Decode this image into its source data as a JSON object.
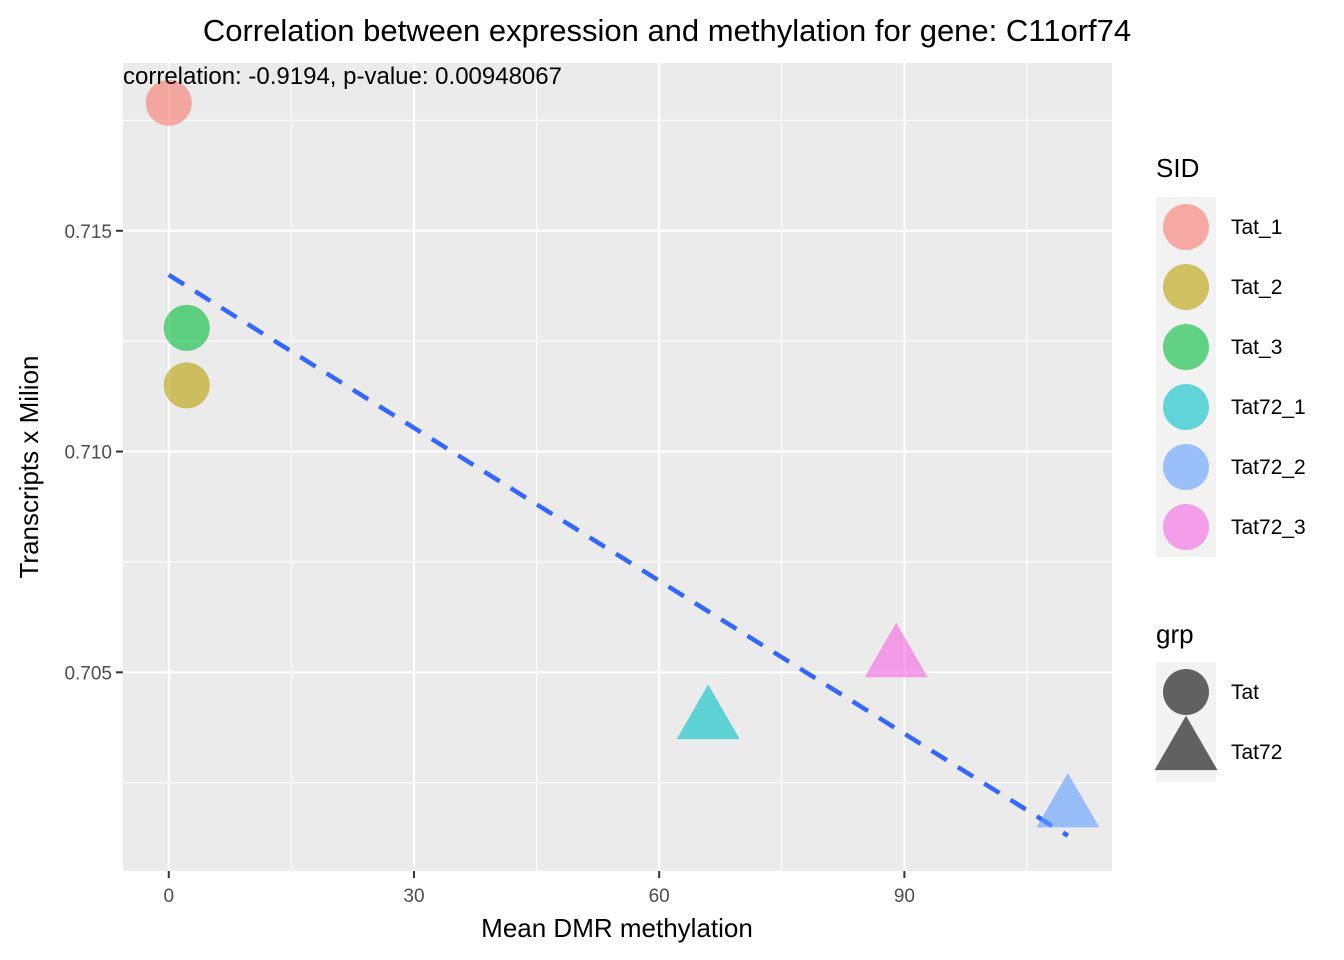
{
  "chart_data": {
    "type": "scatter",
    "title": "Correlation between expression and methylation for gene: C11orf74",
    "annotation": "correlation: -0.9194, p-value: 0.00948067",
    "xlabel": "Mean DMR methylation",
    "ylabel": "Transcripts x Milion",
    "xlim": [
      -5.6,
      115.4
    ],
    "ylim": [
      0.7005,
      0.7188
    ],
    "x_ticks": [
      "0",
      "30",
      "60",
      "90"
    ],
    "x_tick_values": [
      0,
      30,
      60,
      90
    ],
    "y_ticks": [
      "0.705",
      "0.710",
      "0.715"
    ],
    "y_tick_values": [
      0.705,
      0.71,
      0.715
    ],
    "grid": true,
    "points": [
      {
        "sid": "Tat_1",
        "grp": "Tat",
        "x": 0.0,
        "y": 0.7179,
        "color": "#F8766D"
      },
      {
        "sid": "Tat_2",
        "grp": "Tat",
        "x": 2.2,
        "y": 0.7115,
        "color": "#B79F00"
      },
      {
        "sid": "Tat_3",
        "grp": "Tat",
        "x": 2.2,
        "y": 0.7128,
        "color": "#00BA38"
      },
      {
        "sid": "Tat72_1",
        "grp": "Tat72",
        "x": 66.0,
        "y": 0.7039,
        "color": "#00BFC4"
      },
      {
        "sid": "Tat72_2",
        "grp": "Tat72",
        "x": 110.0,
        "y": 0.7019,
        "color": "#619CFF"
      },
      {
        "sid": "Tat72_3",
        "grp": "Tat72",
        "x": 89.0,
        "y": 0.7053,
        "color": "#F564E3"
      }
    ],
    "trend_line": {
      "x": [
        0,
        110
      ],
      "y": [
        0.714,
        0.7013
      ],
      "color": "#3366FF",
      "style": "dashed"
    },
    "legend": {
      "placement": "right",
      "sid": {
        "title": "SID",
        "items": [
          {
            "label": "Tat_1",
            "color": "#F8766D"
          },
          {
            "label": "Tat_2",
            "color": "#B79F00"
          },
          {
            "label": "Tat_3",
            "color": "#00BA38"
          },
          {
            "label": "Tat72_1",
            "color": "#00BFC4"
          },
          {
            "label": "Tat72_2",
            "color": "#619CFF"
          },
          {
            "label": "Tat72_3",
            "color": "#F564E3"
          }
        ]
      },
      "grp": {
        "title": "grp",
        "items": [
          {
            "label": "Tat",
            "shape": "circle"
          },
          {
            "label": "Tat72",
            "shape": "triangle"
          }
        ]
      }
    }
  }
}
